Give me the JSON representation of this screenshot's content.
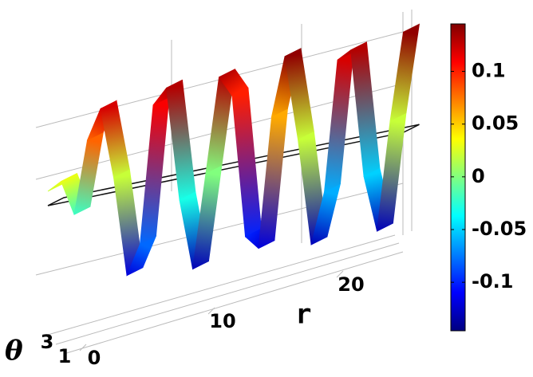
{
  "chart_data": {
    "type": "surface",
    "x_label": "r",
    "y_label": "θ",
    "x": [
      0,
      1,
      2,
      3,
      4,
      5,
      6,
      7,
      8,
      9,
      10,
      11,
      12,
      13,
      14,
      15,
      16,
      17,
      18,
      19,
      20,
      21,
      22,
      23,
      24,
      25,
      26,
      27
    ],
    "values": [
      0.02,
      0.03,
      -0.02,
      0.08,
      0.12,
      0.02,
      -0.12,
      -0.08,
      0.11,
      0.13,
      -0.03,
      -0.13,
      0.0,
      0.13,
      0.1,
      -0.1,
      -0.12,
      0.06,
      0.14,
      0.02,
      -0.13,
      -0.06,
      0.12,
      0.13,
      -0.05,
      -0.13,
      0.02,
      0.14
    ],
    "xticks": [
      0,
      10,
      20
    ],
    "yticks": [
      1,
      3
    ],
    "colormap": "jet",
    "clim": [
      -0.146,
      0.145
    ],
    "cticks": [
      -0.1,
      -0.05,
      0,
      0.05,
      0.1
    ]
  }
}
